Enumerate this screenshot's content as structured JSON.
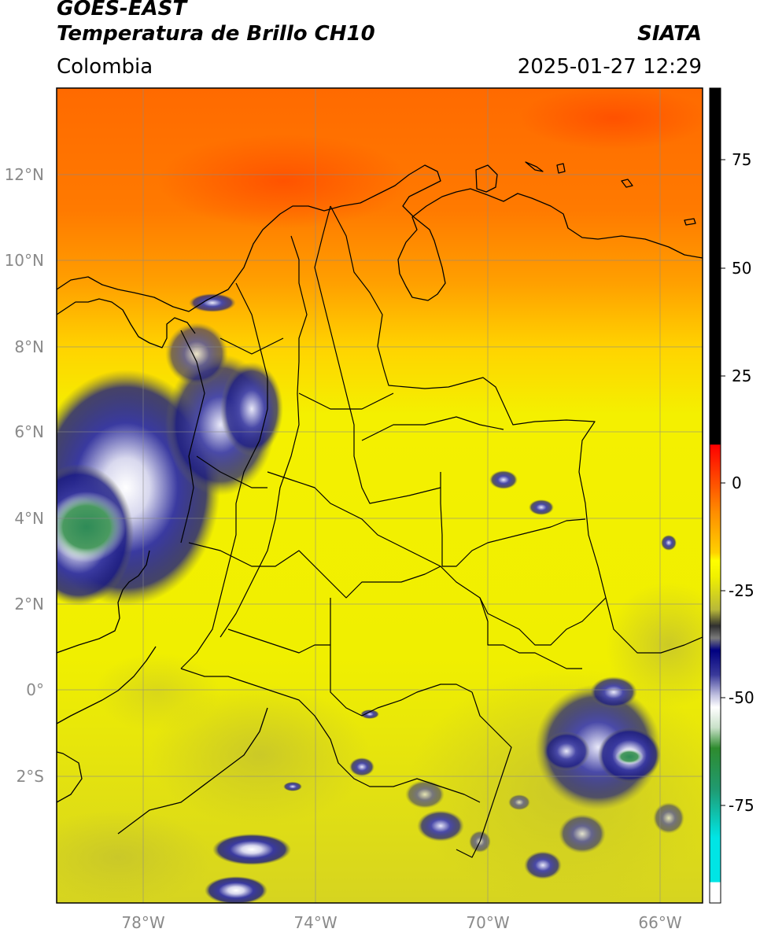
{
  "header": {
    "satellite": "GOES-EAST",
    "product": "Temperatura de Brillo CH10",
    "region": "Colombia",
    "organization": "SIATA",
    "timestamp": "2025-01-27 12:29"
  },
  "map": {
    "lat_labels": [
      "12°N",
      "10°N",
      "8°N",
      "6°N",
      "4°N",
      "2°N",
      "0°",
      "2°S"
    ],
    "lon_labels": [
      "78°W",
      "74°W",
      "70°W",
      "66°W"
    ]
  },
  "colorbar": {
    "ticks": [
      "75",
      "50",
      "25",
      "0",
      "-25",
      "-50",
      "-75"
    ],
    "colors": {
      "black": "#000000",
      "red": "#ff0000",
      "orange": "#ff8c00",
      "yellow": "#ffff00",
      "olive": "#b8b83a",
      "navy": "#000080",
      "white": "#ffffff",
      "green": "#2e8b2e",
      "cyan": "#00e5e5"
    }
  }
}
